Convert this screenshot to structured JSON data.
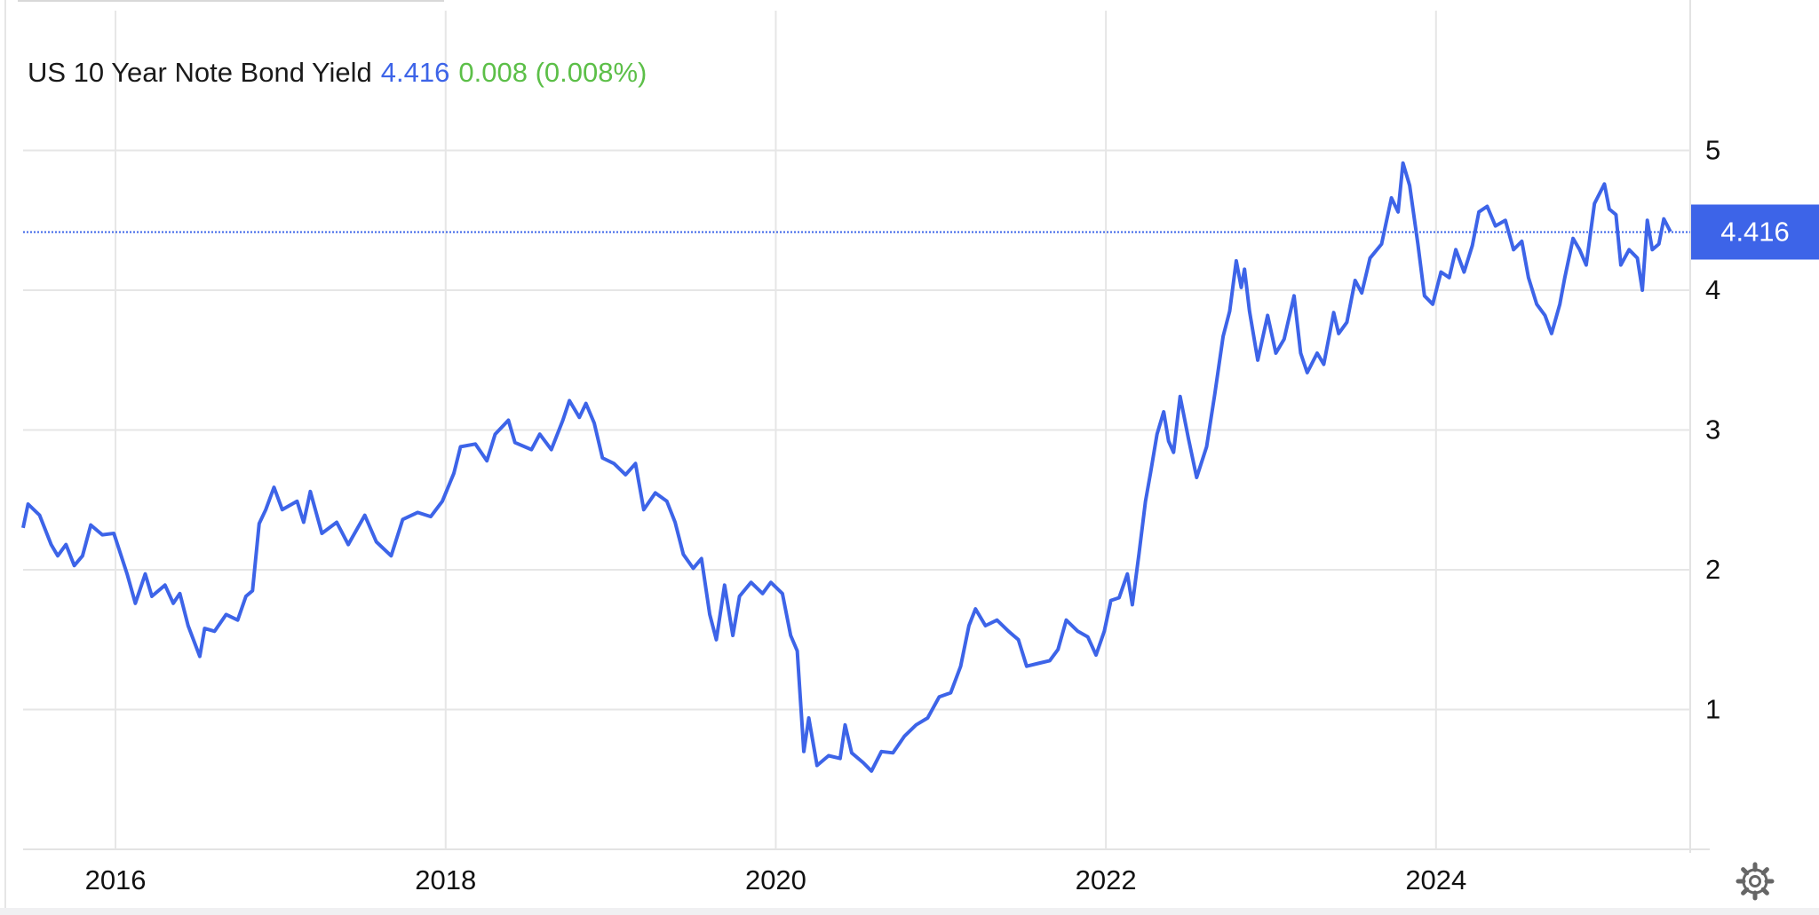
{
  "chart_data": {
    "type": "line",
    "title": "US 10 Year Note Bond Yield",
    "last_value": 4.416,
    "change": "0.008 (0.008%)",
    "color": "#3d64e8",
    "change_color": "#5cbf48",
    "grid": true,
    "xlim": [
      2015.44,
      2025.54
    ],
    "ylim": [
      0,
      6
    ],
    "xticks": [
      2016,
      2018,
      2020,
      2022,
      2024
    ],
    "yticks": [
      1,
      2,
      3,
      4,
      5
    ],
    "x": [
      2015.44,
      2015.47,
      2015.54,
      2015.61,
      2015.65,
      2015.7,
      2015.75,
      2015.8,
      2015.85,
      2015.92,
      2015.99,
      2016.07,
      2016.12,
      2016.18,
      2016.22,
      2016.3,
      2016.35,
      2016.39,
      2016.44,
      2016.51,
      2016.54,
      2016.6,
      2016.67,
      2016.74,
      2016.79,
      2016.83,
      2016.87,
      2016.91,
      2016.96,
      2017.01,
      2017.1,
      2017.14,
      2017.18,
      2017.25,
      2017.34,
      2017.41,
      2017.51,
      2017.58,
      2017.67,
      2017.74,
      2017.83,
      2017.91,
      2017.98,
      2018.05,
      2018.09,
      2018.18,
      2018.25,
      2018.3,
      2018.38,
      2018.42,
      2018.52,
      2018.57,
      2018.64,
      2018.71,
      2018.75,
      2018.81,
      2018.85,
      2018.9,
      2018.95,
      2019.02,
      2019.09,
      2019.15,
      2019.2,
      2019.27,
      2019.34,
      2019.39,
      2019.44,
      2019.5,
      2019.55,
      2019.6,
      2019.64,
      2019.69,
      2019.74,
      2019.78,
      2019.85,
      2019.92,
      2019.97,
      2020.04,
      2020.09,
      2020.13,
      2020.17,
      2020.2,
      2020.25,
      2020.32,
      2020.39,
      2020.42,
      2020.46,
      2020.53,
      2020.58,
      2020.64,
      2020.71,
      2020.78,
      2020.85,
      2020.92,
      2020.99,
      2021.06,
      2021.12,
      2021.17,
      2021.21,
      2021.27,
      2021.34,
      2021.41,
      2021.47,
      2021.52,
      2021.59,
      2021.66,
      2021.71,
      2021.76,
      2021.83,
      2021.89,
      2021.94,
      2021.99,
      2022.03,
      2022.08,
      2022.13,
      2022.16,
      2022.2,
      2022.24,
      2022.27,
      2022.31,
      2022.35,
      2022.38,
      2022.41,
      2022.45,
      2022.5,
      2022.55,
      2022.61,
      2022.66,
      2022.71,
      2022.75,
      2022.79,
      2022.82,
      2022.84,
      2022.87,
      2022.92,
      2022.98,
      2023.03,
      2023.08,
      2023.14,
      2023.18,
      2023.22,
      2023.28,
      2023.32,
      2023.38,
      2023.41,
      2023.46,
      2023.51,
      2023.55,
      2023.6,
      2023.67,
      2023.73,
      2023.77,
      2023.8,
      2023.84,
      2023.89,
      2023.93,
      2023.98,
      2024.03,
      2024.08,
      2024.12,
      2024.17,
      2024.22,
      2024.26,
      2024.31,
      2024.36,
      2024.42,
      2024.47,
      2024.52,
      2024.56,
      2024.61,
      2024.66,
      2024.7,
      2024.75,
      2024.78,
      2024.83,
      2024.87,
      2024.91,
      2024.96,
      2025.02,
      2025.05,
      2025.09,
      2025.12,
      2025.17,
      2025.22,
      2025.25,
      2025.28,
      2025.31,
      2025.35,
      2025.38,
      2025.42
    ],
    "values": [
      2.3,
      2.47,
      2.39,
      2.18,
      2.1,
      2.18,
      2.03,
      2.1,
      2.32,
      2.25,
      2.26,
      1.97,
      1.76,
      1.97,
      1.81,
      1.89,
      1.76,
      1.83,
      1.6,
      1.38,
      1.58,
      1.56,
      1.68,
      1.64,
      1.81,
      1.85,
      2.33,
      2.43,
      2.59,
      2.43,
      2.49,
      2.34,
      2.56,
      2.26,
      2.34,
      2.18,
      2.39,
      2.2,
      2.1,
      2.36,
      2.41,
      2.38,
      2.49,
      2.69,
      2.88,
      2.9,
      2.78,
      2.97,
      3.07,
      2.91,
      2.86,
      2.97,
      2.86,
      3.07,
      3.21,
      3.09,
      3.19,
      3.05,
      2.8,
      2.76,
      2.68,
      2.76,
      2.43,
      2.55,
      2.49,
      2.34,
      2.11,
      2.01,
      2.08,
      1.68,
      1.5,
      1.89,
      1.53,
      1.81,
      1.91,
      1.83,
      1.91,
      1.83,
      1.53,
      1.42,
      0.7,
      0.94,
      0.6,
      0.67,
      0.65,
      0.89,
      0.69,
      0.62,
      0.56,
      0.7,
      0.69,
      0.81,
      0.89,
      0.94,
      1.09,
      1.12,
      1.31,
      1.6,
      1.72,
      1.6,
      1.64,
      1.56,
      1.5,
      1.31,
      1.33,
      1.35,
      1.43,
      1.64,
      1.56,
      1.52,
      1.39,
      1.56,
      1.78,
      1.8,
      1.97,
      1.75,
      2.11,
      2.49,
      2.69,
      2.97,
      3.13,
      2.92,
      2.84,
      3.24,
      2.94,
      2.66,
      2.88,
      3.26,
      3.67,
      3.85,
      4.21,
      4.02,
      4.15,
      3.85,
      3.5,
      3.82,
      3.55,
      3.65,
      3.96,
      3.55,
      3.41,
      3.55,
      3.47,
      3.84,
      3.69,
      3.77,
      4.07,
      3.98,
      4.23,
      4.33,
      4.66,
      4.56,
      4.91,
      4.75,
      4.33,
      3.96,
      3.9,
      4.13,
      4.09,
      4.29,
      4.13,
      4.32,
      4.56,
      4.6,
      4.46,
      4.5,
      4.29,
      4.35,
      4.09,
      3.9,
      3.82,
      3.69,
      3.9,
      4.09,
      4.37,
      4.29,
      4.18,
      4.62,
      4.76,
      4.58,
      4.54,
      4.18,
      4.29,
      4.23,
      4.0,
      4.5,
      4.29,
      4.33,
      4.51,
      4.42
    ]
  }
}
